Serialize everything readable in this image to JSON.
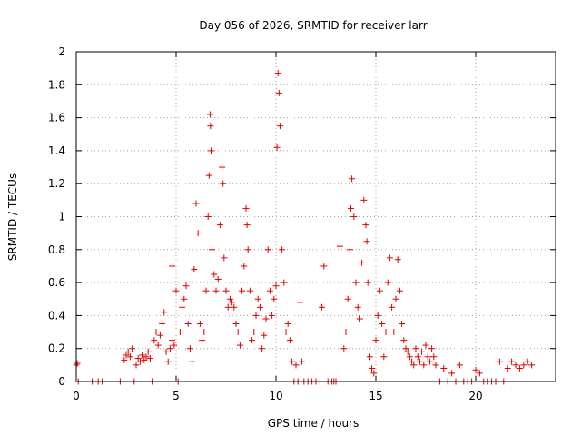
{
  "chart_data": {
    "type": "scatter",
    "title": "Day 056 of 2026, SRMTID for receiver larr",
    "xlabel": "GPS time / hours",
    "ylabel": "SRMTID / TECUs",
    "xlim": [
      0,
      24
    ],
    "ylim": [
      0,
      2
    ],
    "xticks": [
      0,
      5,
      10,
      15,
      20
    ],
    "yticks": [
      0,
      0.2,
      0.4,
      0.6,
      0.8,
      1,
      1.2,
      1.4,
      1.6,
      1.8,
      2
    ],
    "xtick_labels": [
      "0",
      "5",
      "10",
      "15",
      "20"
    ],
    "ytick_labels": [
      "0",
      "0.2",
      "0.4",
      "0.6",
      "0.8",
      "1",
      "1.2",
      "1.4",
      "1.6",
      "1.8",
      "2"
    ],
    "grid": true,
    "marker": "plus",
    "color": "#e00000",
    "series": [
      {
        "name": "SRMTID",
        "points": [
          [
            0.0,
            0.1
          ],
          [
            0.05,
            0.11
          ],
          [
            0.1,
            0.0
          ],
          [
            0.8,
            0.0
          ],
          [
            1.1,
            0.0
          ],
          [
            1.3,
            0.0
          ],
          [
            2.2,
            0.0
          ],
          [
            2.4,
            0.13
          ],
          [
            2.5,
            0.16
          ],
          [
            2.6,
            0.18
          ],
          [
            2.7,
            0.15
          ],
          [
            2.8,
            0.2
          ],
          [
            2.9,
            0.0
          ],
          [
            3.0,
            0.1
          ],
          [
            3.1,
            0.14
          ],
          [
            3.2,
            0.12
          ],
          [
            3.3,
            0.16
          ],
          [
            3.4,
            0.13
          ],
          [
            3.5,
            0.15
          ],
          [
            3.6,
            0.18
          ],
          [
            3.7,
            0.14
          ],
          [
            3.8,
            0.0
          ],
          [
            3.9,
            0.25
          ],
          [
            4.0,
            0.3
          ],
          [
            4.1,
            0.22
          ],
          [
            4.2,
            0.28
          ],
          [
            4.3,
            0.35
          ],
          [
            4.4,
            0.42
          ],
          [
            4.5,
            0.18
          ],
          [
            4.6,
            0.12
          ],
          [
            4.7,
            0.2
          ],
          [
            4.8,
            0.25
          ],
          [
            4.9,
            0.22
          ],
          [
            4.8,
            0.7
          ],
          [
            5.0,
            0.55
          ],
          [
            5.1,
            0.0
          ],
          [
            5.2,
            0.3
          ],
          [
            5.3,
            0.45
          ],
          [
            5.4,
            0.5
          ],
          [
            5.5,
            0.58
          ],
          [
            5.6,
            0.35
          ],
          [
            5.7,
            0.2
          ],
          [
            5.8,
            0.12
          ],
          [
            5.9,
            0.68
          ],
          [
            6.0,
            1.08
          ],
          [
            6.1,
            0.9
          ],
          [
            6.2,
            0.35
          ],
          [
            6.3,
            0.25
          ],
          [
            6.4,
            0.3
          ],
          [
            6.5,
            0.55
          ],
          [
            6.6,
            1.0
          ],
          [
            6.65,
            1.25
          ],
          [
            6.7,
            1.62
          ],
          [
            6.72,
            1.55
          ],
          [
            6.75,
            1.4
          ],
          [
            6.8,
            0.8
          ],
          [
            6.9,
            0.65
          ],
          [
            7.0,
            0.55
          ],
          [
            7.1,
            0.62
          ],
          [
            7.2,
            0.95
          ],
          [
            7.3,
            1.3
          ],
          [
            7.35,
            1.2
          ],
          [
            7.4,
            0.75
          ],
          [
            7.5,
            0.55
          ],
          [
            7.6,
            0.45
          ],
          [
            7.7,
            0.5
          ],
          [
            7.8,
            0.48
          ],
          [
            7.9,
            0.45
          ],
          [
            8.0,
            0.35
          ],
          [
            8.1,
            0.3
          ],
          [
            8.2,
            0.22
          ],
          [
            8.3,
            0.55
          ],
          [
            8.4,
            0.7
          ],
          [
            8.5,
            1.05
          ],
          [
            8.55,
            0.95
          ],
          [
            8.6,
            0.8
          ],
          [
            8.7,
            0.55
          ],
          [
            8.8,
            0.25
          ],
          [
            8.9,
            0.3
          ],
          [
            9.0,
            0.4
          ],
          [
            9.1,
            0.5
          ],
          [
            9.2,
            0.45
          ],
          [
            9.3,
            0.2
          ],
          [
            9.4,
            0.28
          ],
          [
            9.5,
            0.38
          ],
          [
            9.6,
            0.8
          ],
          [
            9.7,
            0.55
          ],
          [
            9.8,
            0.4
          ],
          [
            9.9,
            0.5
          ],
          [
            10.0,
            0.58
          ],
          [
            10.05,
            1.42
          ],
          [
            10.1,
            1.87
          ],
          [
            10.15,
            1.75
          ],
          [
            10.2,
            1.55
          ],
          [
            10.3,
            0.8
          ],
          [
            10.4,
            0.6
          ],
          [
            10.5,
            0.3
          ],
          [
            10.6,
            0.35
          ],
          [
            10.7,
            0.25
          ],
          [
            10.8,
            0.12
          ],
          [
            10.9,
            0.0
          ],
          [
            11.0,
            0.1
          ],
          [
            11.1,
            0.0
          ],
          [
            11.2,
            0.48
          ],
          [
            11.3,
            0.12
          ],
          [
            11.4,
            0.0
          ],
          [
            11.6,
            0.0
          ],
          [
            11.8,
            0.0
          ],
          [
            12.0,
            0.0
          ],
          [
            12.2,
            0.0
          ],
          [
            12.3,
            0.45
          ],
          [
            12.4,
            0.7
          ],
          [
            12.6,
            0.0
          ],
          [
            12.8,
            0.0
          ],
          [
            12.9,
            0.0
          ],
          [
            13.0,
            0.0
          ],
          [
            13.2,
            0.82
          ],
          [
            13.4,
            0.2
          ],
          [
            13.5,
            0.3
          ],
          [
            13.6,
            0.5
          ],
          [
            13.7,
            0.8
          ],
          [
            13.75,
            1.05
          ],
          [
            13.8,
            1.23
          ],
          [
            13.9,
            1.0
          ],
          [
            14.0,
            0.6
          ],
          [
            14.1,
            0.45
          ],
          [
            14.2,
            0.38
          ],
          [
            14.3,
            0.72
          ],
          [
            14.4,
            1.1
          ],
          [
            14.5,
            0.95
          ],
          [
            14.55,
            0.85
          ],
          [
            14.6,
            0.6
          ],
          [
            14.7,
            0.15
          ],
          [
            14.8,
            0.08
          ],
          [
            14.9,
            0.05
          ],
          [
            15.0,
            0.25
          ],
          [
            15.1,
            0.4
          ],
          [
            15.2,
            0.55
          ],
          [
            15.3,
            0.35
          ],
          [
            15.4,
            0.15
          ],
          [
            15.5,
            0.3
          ],
          [
            15.6,
            0.6
          ],
          [
            15.7,
            0.75
          ],
          [
            15.8,
            0.45
          ],
          [
            15.9,
            0.3
          ],
          [
            16.0,
            0.5
          ],
          [
            16.1,
            0.74
          ],
          [
            16.2,
            0.55
          ],
          [
            16.3,
            0.35
          ],
          [
            16.4,
            0.25
          ],
          [
            16.5,
            0.2
          ],
          [
            16.6,
            0.18
          ],
          [
            16.7,
            0.15
          ],
          [
            16.8,
            0.12
          ],
          [
            16.9,
            0.1
          ],
          [
            17.0,
            0.2
          ],
          [
            17.1,
            0.15
          ],
          [
            17.2,
            0.12
          ],
          [
            17.3,
            0.18
          ],
          [
            17.4,
            0.1
          ],
          [
            17.5,
            0.22
          ],
          [
            17.6,
            0.15
          ],
          [
            17.7,
            0.12
          ],
          [
            17.8,
            0.2
          ],
          [
            17.9,
            0.15
          ],
          [
            18.0,
            0.1
          ],
          [
            18.2,
            0.0
          ],
          [
            18.4,
            0.08
          ],
          [
            18.6,
            0.0
          ],
          [
            18.8,
            0.05
          ],
          [
            19.0,
            0.0
          ],
          [
            19.2,
            0.1
          ],
          [
            19.4,
            0.0
          ],
          [
            19.6,
            0.0
          ],
          [
            19.8,
            0.0
          ],
          [
            20.0,
            0.07
          ],
          [
            20.2,
            0.05
          ],
          [
            20.4,
            0.0
          ],
          [
            20.6,
            0.0
          ],
          [
            20.8,
            0.0
          ],
          [
            21.0,
            0.0
          ],
          [
            21.2,
            0.12
          ],
          [
            21.4,
            0.0
          ],
          [
            21.6,
            0.08
          ],
          [
            21.8,
            0.12
          ],
          [
            22.0,
            0.1
          ],
          [
            22.2,
            0.08
          ],
          [
            22.4,
            0.1
          ],
          [
            22.6,
            0.12
          ],
          [
            22.8,
            0.1
          ]
        ]
      }
    ]
  }
}
